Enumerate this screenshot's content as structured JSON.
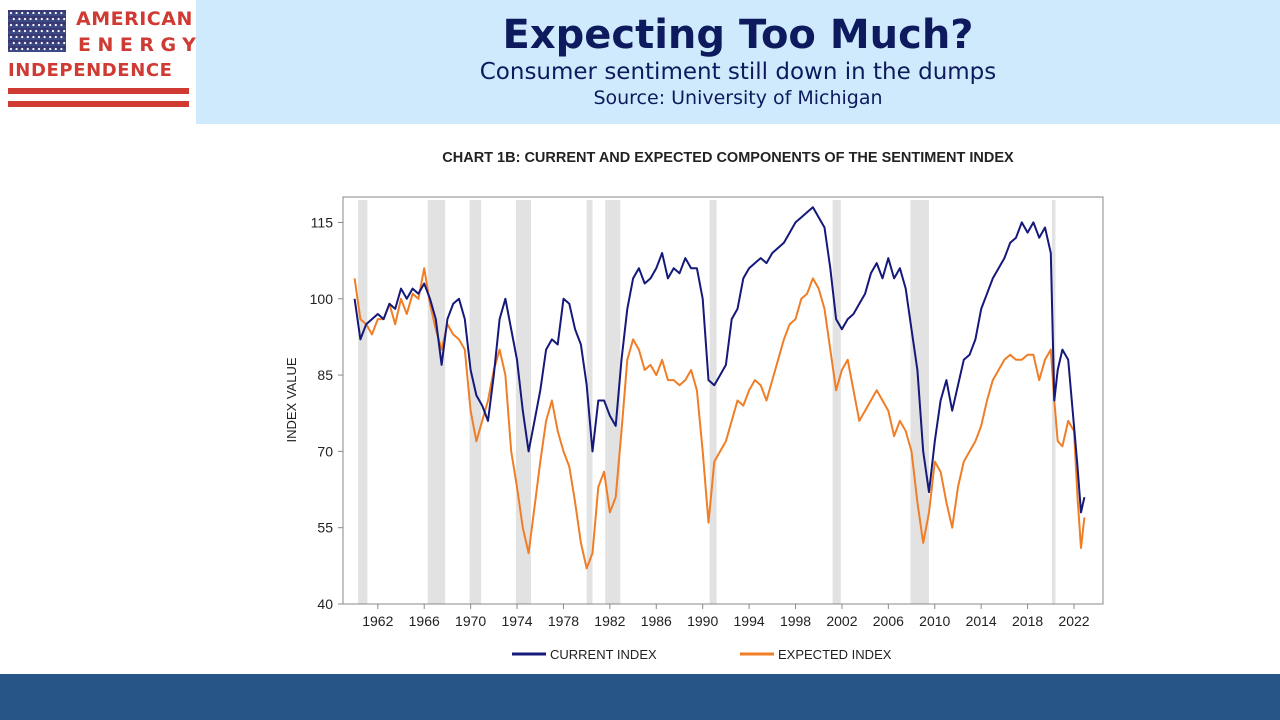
{
  "logo": {
    "line1": "AMERICAN",
    "line2": "ENERGY",
    "line3": "INDEPENDENCE",
    "colors": {
      "red": "#cf3a33",
      "blue": "#2b3a7a"
    }
  },
  "header": {
    "title": "Expecting Too Much?",
    "subtitle": "Consumer sentiment still down in the dumps",
    "source": "Source: University of Michigan",
    "background": "#cfeafc",
    "text_color": "#0d1b5e"
  },
  "footer": {
    "color": "#275587"
  },
  "chart_data": {
    "type": "line",
    "title": "CHART 1B: CURRENT AND EXPECTED COMPONENTS OF THE SENTIMENT INDEX",
    "xlabel": "",
    "ylabel": "INDEX VALUE",
    "xlim": [
      1959,
      2024.5
    ],
    "ylim": [
      40,
      120
    ],
    "y_ticks": [
      40,
      55,
      70,
      85,
      100,
      115
    ],
    "x_ticks": [
      1962,
      1966,
      1970,
      1974,
      1978,
      1982,
      1986,
      1990,
      1994,
      1998,
      2002,
      2006,
      2010,
      2014,
      2018,
      2022
    ],
    "grid": false,
    "legend_position": "bottom",
    "recessions": [
      [
        1960.3,
        1961.1
      ],
      [
        1966.3,
        1967.8
      ],
      [
        1969.9,
        1970.9
      ],
      [
        1973.9,
        1975.2
      ],
      [
        1980.0,
        1980.5
      ],
      [
        1981.6,
        1982.9
      ],
      [
        1990.6,
        1991.2
      ],
      [
        2001.2,
        2001.9
      ],
      [
        2007.9,
        2009.5
      ],
      [
        2020.1,
        2020.4
      ]
    ],
    "recession_color": "#e2e2e2",
    "series": [
      {
        "name": "CURRENT INDEX",
        "color": "#14197a",
        "x": [
          1960.0,
          1960.5,
          1961.0,
          1961.5,
          1962.0,
          1962.5,
          1963.0,
          1963.5,
          1964.0,
          1964.5,
          1965.0,
          1965.5,
          1966.0,
          1966.5,
          1967.0,
          1967.5,
          1968.0,
          1968.5,
          1969.0,
          1969.5,
          1970.0,
          1970.5,
          1971.0,
          1971.5,
          1972.0,
          1972.5,
          1973.0,
          1973.5,
          1974.0,
          1974.5,
          1975.0,
          1975.5,
          1976.0,
          1976.5,
          1977.0,
          1977.5,
          1978.0,
          1978.5,
          1979.0,
          1979.5,
          1980.0,
          1980.5,
          1981.0,
          1981.5,
          1982.0,
          1982.5,
          1983.0,
          1983.5,
          1984.0,
          1984.5,
          1985.0,
          1985.5,
          1986.0,
          1986.5,
          1987.0,
          1987.5,
          1988.0,
          1988.5,
          1989.0,
          1989.5,
          1990.0,
          1990.5,
          1991.0,
          1991.5,
          1992.0,
          1992.5,
          1993.0,
          1993.5,
          1994.0,
          1994.5,
          1995.0,
          1995.5,
          1996.0,
          1996.5,
          1997.0,
          1997.5,
          1998.0,
          1998.5,
          1999.0,
          1999.5,
          2000.0,
          2000.5,
          2001.0,
          2001.5,
          2002.0,
          2002.5,
          2003.0,
          2003.5,
          2004.0,
          2004.5,
          2005.0,
          2005.5,
          2006.0,
          2006.5,
          2007.0,
          2007.5,
          2008.0,
          2008.5,
          2009.0,
          2009.5,
          2010.0,
          2010.5,
          2011.0,
          2011.5,
          2012.0,
          2012.5,
          2013.0,
          2013.5,
          2014.0,
          2014.5,
          2015.0,
          2015.5,
          2016.0,
          2016.5,
          2017.0,
          2017.5,
          2018.0,
          2018.5,
          2019.0,
          2019.5,
          2020.0,
          2020.3,
          2020.6,
          2021.0,
          2021.5,
          2022.0,
          2022.3,
          2022.6,
          2022.9
        ],
        "y": [
          100,
          92,
          95,
          96,
          97,
          96,
          99,
          98,
          102,
          100,
          102,
          101,
          103,
          100,
          96,
          87,
          96,
          99,
          100,
          96,
          86,
          81,
          79,
          76,
          85,
          96,
          100,
          94,
          88,
          78,
          70,
          76,
          82,
          90,
          92,
          91,
          100,
          99,
          94,
          91,
          83,
          70,
          80,
          80,
          77,
          75,
          88,
          98,
          104,
          106,
          103,
          104,
          106,
          109,
          104,
          106,
          105,
          108,
          106,
          106,
          100,
          84,
          83,
          85,
          87,
          96,
          98,
          104,
          106,
          107,
          108,
          107,
          109,
          110,
          111,
          113,
          115,
          116,
          117,
          118,
          116,
          114,
          106,
          96,
          94,
          96,
          97,
          99,
          101,
          105,
          107,
          104,
          108,
          104,
          106,
          102,
          94,
          86,
          70,
          62,
          72,
          80,
          84,
          78,
          83,
          88,
          89,
          92,
          98,
          101,
          104,
          106,
          108,
          111,
          112,
          115,
          113,
          115,
          112,
          114,
          109,
          80,
          86,
          90,
          88,
          75,
          67,
          58,
          61
        ]
      },
      {
        "name": "EXPECTED INDEX",
        "color": "#f07e26",
        "x": [
          1960.0,
          1960.5,
          1961.0,
          1961.5,
          1962.0,
          1962.5,
          1963.0,
          1963.5,
          1964.0,
          1964.5,
          1965.0,
          1965.5,
          1966.0,
          1966.5,
          1967.0,
          1967.5,
          1968.0,
          1968.5,
          1969.0,
          1969.5,
          1970.0,
          1970.5,
          1971.0,
          1971.5,
          1972.0,
          1972.5,
          1973.0,
          1973.5,
          1974.0,
          1974.5,
          1975.0,
          1975.5,
          1976.0,
          1976.5,
          1977.0,
          1977.5,
          1978.0,
          1978.5,
          1979.0,
          1979.5,
          1980.0,
          1980.5,
          1981.0,
          1981.5,
          1982.0,
          1982.5,
          1983.0,
          1983.5,
          1984.0,
          1984.5,
          1985.0,
          1985.5,
          1986.0,
          1986.5,
          1987.0,
          1987.5,
          1988.0,
          1988.5,
          1989.0,
          1989.5,
          1990.0,
          1990.5,
          1991.0,
          1991.5,
          1992.0,
          1992.5,
          1993.0,
          1993.5,
          1994.0,
          1994.5,
          1995.0,
          1995.5,
          1996.0,
          1996.5,
          1997.0,
          1997.5,
          1998.0,
          1998.5,
          1999.0,
          1999.5,
          2000.0,
          2000.5,
          2001.0,
          2001.5,
          2002.0,
          2002.5,
          2003.0,
          2003.5,
          2004.0,
          2004.5,
          2005.0,
          2005.5,
          2006.0,
          2006.5,
          2007.0,
          2007.5,
          2008.0,
          2008.5,
          2009.0,
          2009.5,
          2010.0,
          2010.5,
          2011.0,
          2011.5,
          2012.0,
          2012.5,
          2013.0,
          2013.5,
          2014.0,
          2014.5,
          2015.0,
          2015.5,
          2016.0,
          2016.5,
          2017.0,
          2017.5,
          2018.0,
          2018.5,
          2019.0,
          2019.5,
          2020.0,
          2020.3,
          2020.6,
          2021.0,
          2021.5,
          2022.0,
          2022.3,
          2022.6,
          2022.9
        ],
        "y": [
          104,
          96,
          95,
          93,
          96,
          96,
          99,
          95,
          100,
          97,
          101,
          100,
          106,
          99,
          94,
          90,
          95,
          93,
          92,
          90,
          78,
          72,
          76,
          80,
          86,
          90,
          85,
          70,
          63,
          55,
          50,
          59,
          68,
          76,
          80,
          74,
          70,
          67,
          60,
          52,
          47,
          50,
          63,
          66,
          58,
          61,
          74,
          88,
          92,
          90,
          86,
          87,
          85,
          88,
          84,
          84,
          83,
          84,
          86,
          82,
          70,
          56,
          68,
          70,
          72,
          76,
          80,
          79,
          82,
          84,
          83,
          80,
          84,
          88,
          92,
          95,
          96,
          100,
          101,
          104,
          102,
          98,
          90,
          82,
          86,
          88,
          82,
          76,
          78,
          80,
          82,
          80,
          78,
          73,
          76,
          74,
          70,
          60,
          52,
          58,
          68,
          66,
          60,
          55,
          63,
          68,
          70,
          72,
          75,
          80,
          84,
          86,
          88,
          89,
          88,
          88,
          89,
          89,
          84,
          88,
          90,
          80,
          72,
          71,
          76,
          74,
          61,
          51,
          57
        ]
      }
    ]
  }
}
